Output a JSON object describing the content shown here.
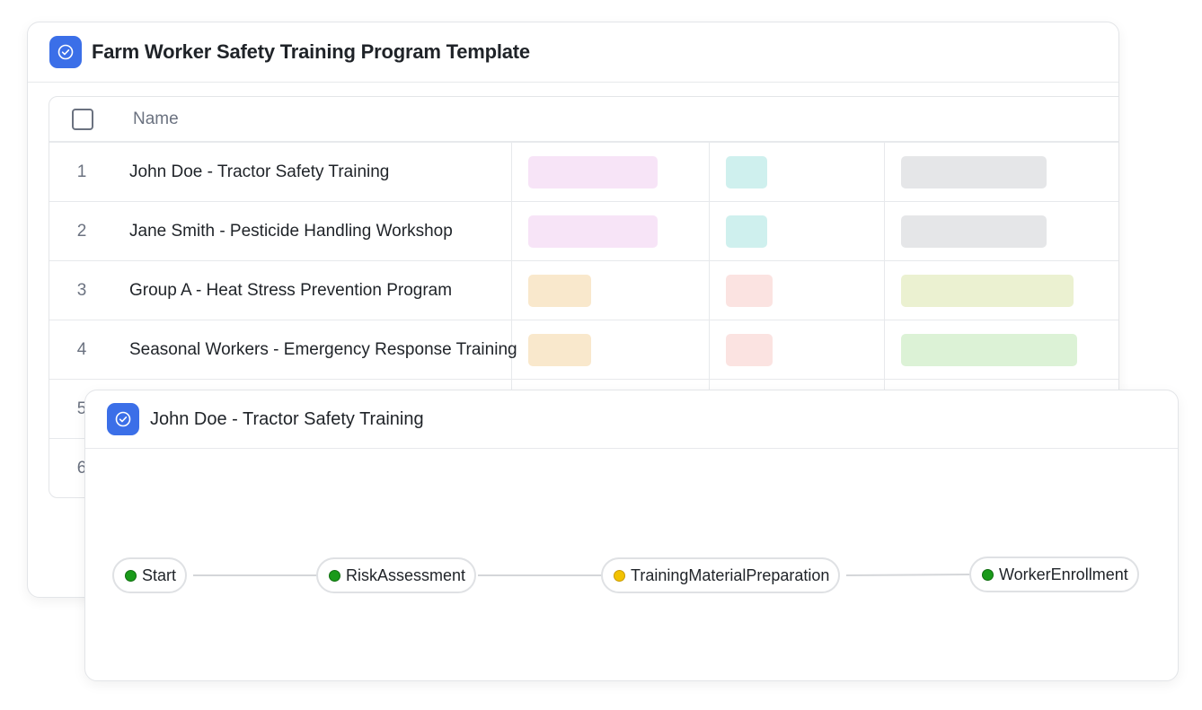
{
  "back": {
    "title": "Farm Worker Safety Training Program Template",
    "table": {
      "header_name": "Name",
      "rows": [
        {
          "num": "1",
          "name": "John Doe - Tractor Safety Training"
        },
        {
          "num": "2",
          "name": "Jane Smith - Pesticide Handling Workshop"
        },
        {
          "num": "3",
          "name": "Group A - Heat Stress Prevention Program"
        },
        {
          "num": "4",
          "name": "Seasonal Workers - Emergency Response Training"
        },
        {
          "num": "5",
          "name": ""
        },
        {
          "num": "6",
          "name": ""
        }
      ]
    }
  },
  "front": {
    "title": "John Doe - Tractor Safety Training",
    "flow": {
      "nodes": [
        {
          "label": "Start",
          "status": "green"
        },
        {
          "label": "RiskAssessment",
          "status": "green"
        },
        {
          "label": "TrainingMaterialPreparation",
          "status": "yellow"
        },
        {
          "label": "WorkerEnrollment",
          "status": "green"
        }
      ]
    }
  },
  "colors": {
    "accent": "#3b6fe8",
    "status_green": "#1a9a1a",
    "status_yellow": "#f2c200",
    "pill_pink": "#f7e4f7",
    "pill_teal": "#cff0ee",
    "pill_gray": "#e5e6e8",
    "pill_orange": "#f9e8cc",
    "pill_salmon": "#fbe3e1",
    "pill_lime": "#ebf1d1",
    "pill_green": "#dcf2d6"
  }
}
